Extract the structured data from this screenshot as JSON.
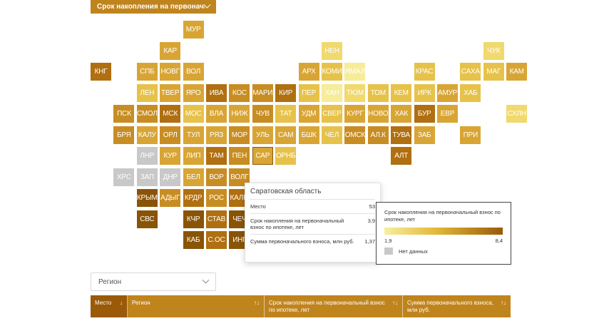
{
  "metric_select": {
    "label": "Срок накопления на первоначальный взнос по ипотеке, лет"
  },
  "colors": {
    "c1": "#f7ec98",
    "c2": "#f1d96d",
    "c3": "#e7c24a",
    "c4": "#d8a535",
    "c5": "#c88d22",
    "c6": "#b06f10",
    "c7": "#8a5406",
    "nd": "#c8c8c8"
  },
  "map": {
    "tiles": [
      {
        "label": "МУР",
        "col": 4,
        "row": 0,
        "c": "c4"
      },
      {
        "label": "КАР",
        "col": 3,
        "row": 1,
        "c": "c4"
      },
      {
        "label": "НЕН",
        "col": 10,
        "row": 1,
        "c": "c2"
      },
      {
        "label": "ЧУК",
        "col": 17,
        "row": 1,
        "c": "c2"
      },
      {
        "label": "КНГ",
        "col": 0,
        "row": 2,
        "c": "c6"
      },
      {
        "label": "СПБ",
        "col": 2,
        "row": 2,
        "c": "c4"
      },
      {
        "label": "НОВГ",
        "col": 3,
        "row": 2,
        "c": "c4"
      },
      {
        "label": "ВОЛ",
        "col": 4,
        "row": 2,
        "c": "c4"
      },
      {
        "label": "АРХ",
        "col": 9,
        "row": 2,
        "c": "c4"
      },
      {
        "label": "КОМИ",
        "col": 10,
        "row": 2,
        "c": "c3"
      },
      {
        "label": "ЯМАЛ",
        "col": 11,
        "row": 2,
        "c": "c1"
      },
      {
        "label": "КРАС",
        "col": 14,
        "row": 2,
        "c": "c3"
      },
      {
        "label": "САХА",
        "col": 16,
        "row": 2,
        "c": "c3"
      },
      {
        "label": "МАГ",
        "col": 17,
        "row": 2,
        "c": "c3"
      },
      {
        "label": "КАМ",
        "col": 18,
        "row": 2,
        "c": "c4"
      },
      {
        "label": "ЛЕН",
        "col": 2,
        "row": 3,
        "c": "c3"
      },
      {
        "label": "ТВЕР",
        "col": 3,
        "row": 3,
        "c": "c4"
      },
      {
        "label": "ЯРО",
        "col": 4,
        "row": 3,
        "c": "c4"
      },
      {
        "label": "ИВА",
        "col": 5,
        "row": 3,
        "c": "c6"
      },
      {
        "label": "КОС",
        "col": 6,
        "row": 3,
        "c": "c5"
      },
      {
        "label": "МАРИ",
        "col": 7,
        "row": 3,
        "c": "c5"
      },
      {
        "label": "КИР",
        "col": 8,
        "row": 3,
        "c": "c6"
      },
      {
        "label": "ПЕР",
        "col": 9,
        "row": 3,
        "c": "c3"
      },
      {
        "label": "ХАН",
        "col": 10,
        "row": 3,
        "c": "c1"
      },
      {
        "label": "ТЮМ",
        "col": 11,
        "row": 3,
        "c": "c2"
      },
      {
        "label": "ТОМ",
        "col": 12,
        "row": 3,
        "c": "c3"
      },
      {
        "label": "КЕМ",
        "col": 13,
        "row": 3,
        "c": "c3"
      },
      {
        "label": "ИРК",
        "col": 14,
        "row": 3,
        "c": "c3"
      },
      {
        "label": "АМУР",
        "col": 15,
        "row": 3,
        "c": "c4"
      },
      {
        "label": "ХАБ",
        "col": 16,
        "row": 3,
        "c": "c3"
      },
      {
        "label": "ПСК",
        "col": 1,
        "row": 4,
        "c": "c5"
      },
      {
        "label": "СМОЛ",
        "col": 2,
        "row": 4,
        "c": "c5"
      },
      {
        "label": "МСК",
        "col": 3,
        "row": 4,
        "c": "c6"
      },
      {
        "label": "МОС",
        "col": 4,
        "row": 4,
        "c": "c3"
      },
      {
        "label": "ВЛА",
        "col": 5,
        "row": 4,
        "c": "c4"
      },
      {
        "label": "НИЖ",
        "col": 6,
        "row": 4,
        "c": "c4"
      },
      {
        "label": "ЧУВ",
        "col": 7,
        "row": 4,
        "c": "c5"
      },
      {
        "label": "ТАТ",
        "col": 8,
        "row": 4,
        "c": "c3"
      },
      {
        "label": "УДМ",
        "col": 9,
        "row": 4,
        "c": "c4"
      },
      {
        "label": "СВЕР",
        "col": 10,
        "row": 4,
        "c": "c3"
      },
      {
        "label": "КУРГ",
        "col": 11,
        "row": 4,
        "c": "c4"
      },
      {
        "label": "НОВО",
        "col": 12,
        "row": 4,
        "c": "c4"
      },
      {
        "label": "ХАК",
        "col": 13,
        "row": 4,
        "c": "c4"
      },
      {
        "label": "БУР",
        "col": 14,
        "row": 4,
        "c": "c6"
      },
      {
        "label": "ЕВР",
        "col": 15,
        "row": 4,
        "c": "c4"
      },
      {
        "label": "СХЛН",
        "col": 18,
        "row": 4,
        "c": "c2"
      },
      {
        "label": "БРЯ",
        "col": 1,
        "row": 5,
        "c": "c5"
      },
      {
        "label": "КАЛУ",
        "col": 2,
        "row": 5,
        "c": "c4"
      },
      {
        "label": "ОРЛ",
        "col": 3,
        "row": 5,
        "c": "c5"
      },
      {
        "label": "ТУЛ",
        "col": 4,
        "row": 5,
        "c": "c4"
      },
      {
        "label": "РЯЗ",
        "col": 5,
        "row": 5,
        "c": "c4"
      },
      {
        "label": "МОР",
        "col": 6,
        "row": 5,
        "c": "c5"
      },
      {
        "label": "УЛЬ",
        "col": 7,
        "row": 5,
        "c": "c4"
      },
      {
        "label": "САМ",
        "col": 8,
        "row": 5,
        "c": "c4"
      },
      {
        "label": "БШК",
        "col": 9,
        "row": 5,
        "c": "c4"
      },
      {
        "label": "ЧЕЛ",
        "col": 10,
        "row": 5,
        "c": "c3"
      },
      {
        "label": "ОМСК",
        "col": 11,
        "row": 5,
        "c": "c5"
      },
      {
        "label": "АЛ.К",
        "col": 12,
        "row": 5,
        "c": "c5"
      },
      {
        "label": "ТУВА",
        "col": 13,
        "row": 5,
        "c": "c6"
      },
      {
        "label": "ЗАБ",
        "col": 14,
        "row": 5,
        "c": "c4"
      },
      {
        "label": "ПРИ",
        "col": 16,
        "row": 5,
        "c": "c4"
      },
      {
        "label": "ЛНР",
        "col": 2,
        "row": 6,
        "c": "nd"
      },
      {
        "label": "КУР",
        "col": 3,
        "row": 6,
        "c": "c4"
      },
      {
        "label": "ЛИП",
        "col": 4,
        "row": 6,
        "c": "c4"
      },
      {
        "label": "ТАМ",
        "col": 5,
        "row": 6,
        "c": "c6"
      },
      {
        "label": "ПЕН",
        "col": 6,
        "row": 6,
        "c": "c5"
      },
      {
        "label": "САР",
        "col": 7,
        "row": 6,
        "c": "c4",
        "highlight": true
      },
      {
        "label": "ОРНБ",
        "col": 8,
        "row": 6,
        "c": "c3"
      },
      {
        "label": "АЛТ",
        "col": 13,
        "row": 6,
        "c": "c6"
      },
      {
        "label": "ХРС",
        "col": 1,
        "row": 7,
        "c": "nd"
      },
      {
        "label": "ЗАП",
        "col": 2,
        "row": 7,
        "c": "nd"
      },
      {
        "label": "ДНР",
        "col": 3,
        "row": 7,
        "c": "nd"
      },
      {
        "label": "БЕЛ",
        "col": 4,
        "row": 7,
        "c": "c4"
      },
      {
        "label": "ВОР",
        "col": 5,
        "row": 7,
        "c": "c5"
      },
      {
        "label": "ВОЛГ",
        "col": 6,
        "row": 7,
        "c": "c5"
      },
      {
        "label": "КРЫМ",
        "col": 2,
        "row": 8,
        "c": "c7"
      },
      {
        "label": "АДЫГ",
        "col": 3,
        "row": 8,
        "c": "c5"
      },
      {
        "label": "КРДР",
        "col": 4,
        "row": 8,
        "c": "c6"
      },
      {
        "label": "РОС",
        "col": 5,
        "row": 8,
        "c": "c5"
      },
      {
        "label": "КАЛМ",
        "col": 6,
        "row": 8,
        "c": "c6"
      },
      {
        "label": "СВС",
        "col": 2,
        "row": 9,
        "c": "c7"
      },
      {
        "label": "КЧР",
        "col": 4,
        "row": 9,
        "c": "c7"
      },
      {
        "label": "СТАВ",
        "col": 5,
        "row": 9,
        "c": "c6"
      },
      {
        "label": "ЧЕЧ",
        "col": 6,
        "row": 9,
        "c": "c7"
      },
      {
        "label": "КАБ",
        "col": 4,
        "row": 10,
        "c": "c7"
      },
      {
        "label": "С.ОС",
        "col": 5,
        "row": 10,
        "c": "c6"
      },
      {
        "label": "ИНГ",
        "col": 6,
        "row": 10,
        "c": "c7"
      }
    ]
  },
  "tooltip": {
    "title": "Саратовская область",
    "rows": [
      {
        "label": "Место",
        "value": "53"
      },
      {
        "label": "Срок накопления на первоначальный взнос по ипотеке, лет",
        "value": "3,9"
      },
      {
        "label": "Сумма первоначального взноса, млн руб.",
        "value": "1,37"
      }
    ]
  },
  "legend": {
    "title": "Срок накопления на первоначальный взнос по ипотеке, лет",
    "min": "1,9",
    "max": "8,4",
    "no_data": "Нет данных"
  },
  "region_select": {
    "placeholder": "Регион"
  },
  "table": {
    "columns": [
      {
        "label": "Место",
        "sort": "↓",
        "active": true
      },
      {
        "label": "Регион",
        "sort": "↑↓"
      },
      {
        "label": "Срок накопления на первоначальный взнос по ипотеке, лет",
        "sort": "↑↓"
      },
      {
        "label": "Сумма первоначального взноса, млн руб.",
        "sort": "↑↓"
      }
    ]
  }
}
